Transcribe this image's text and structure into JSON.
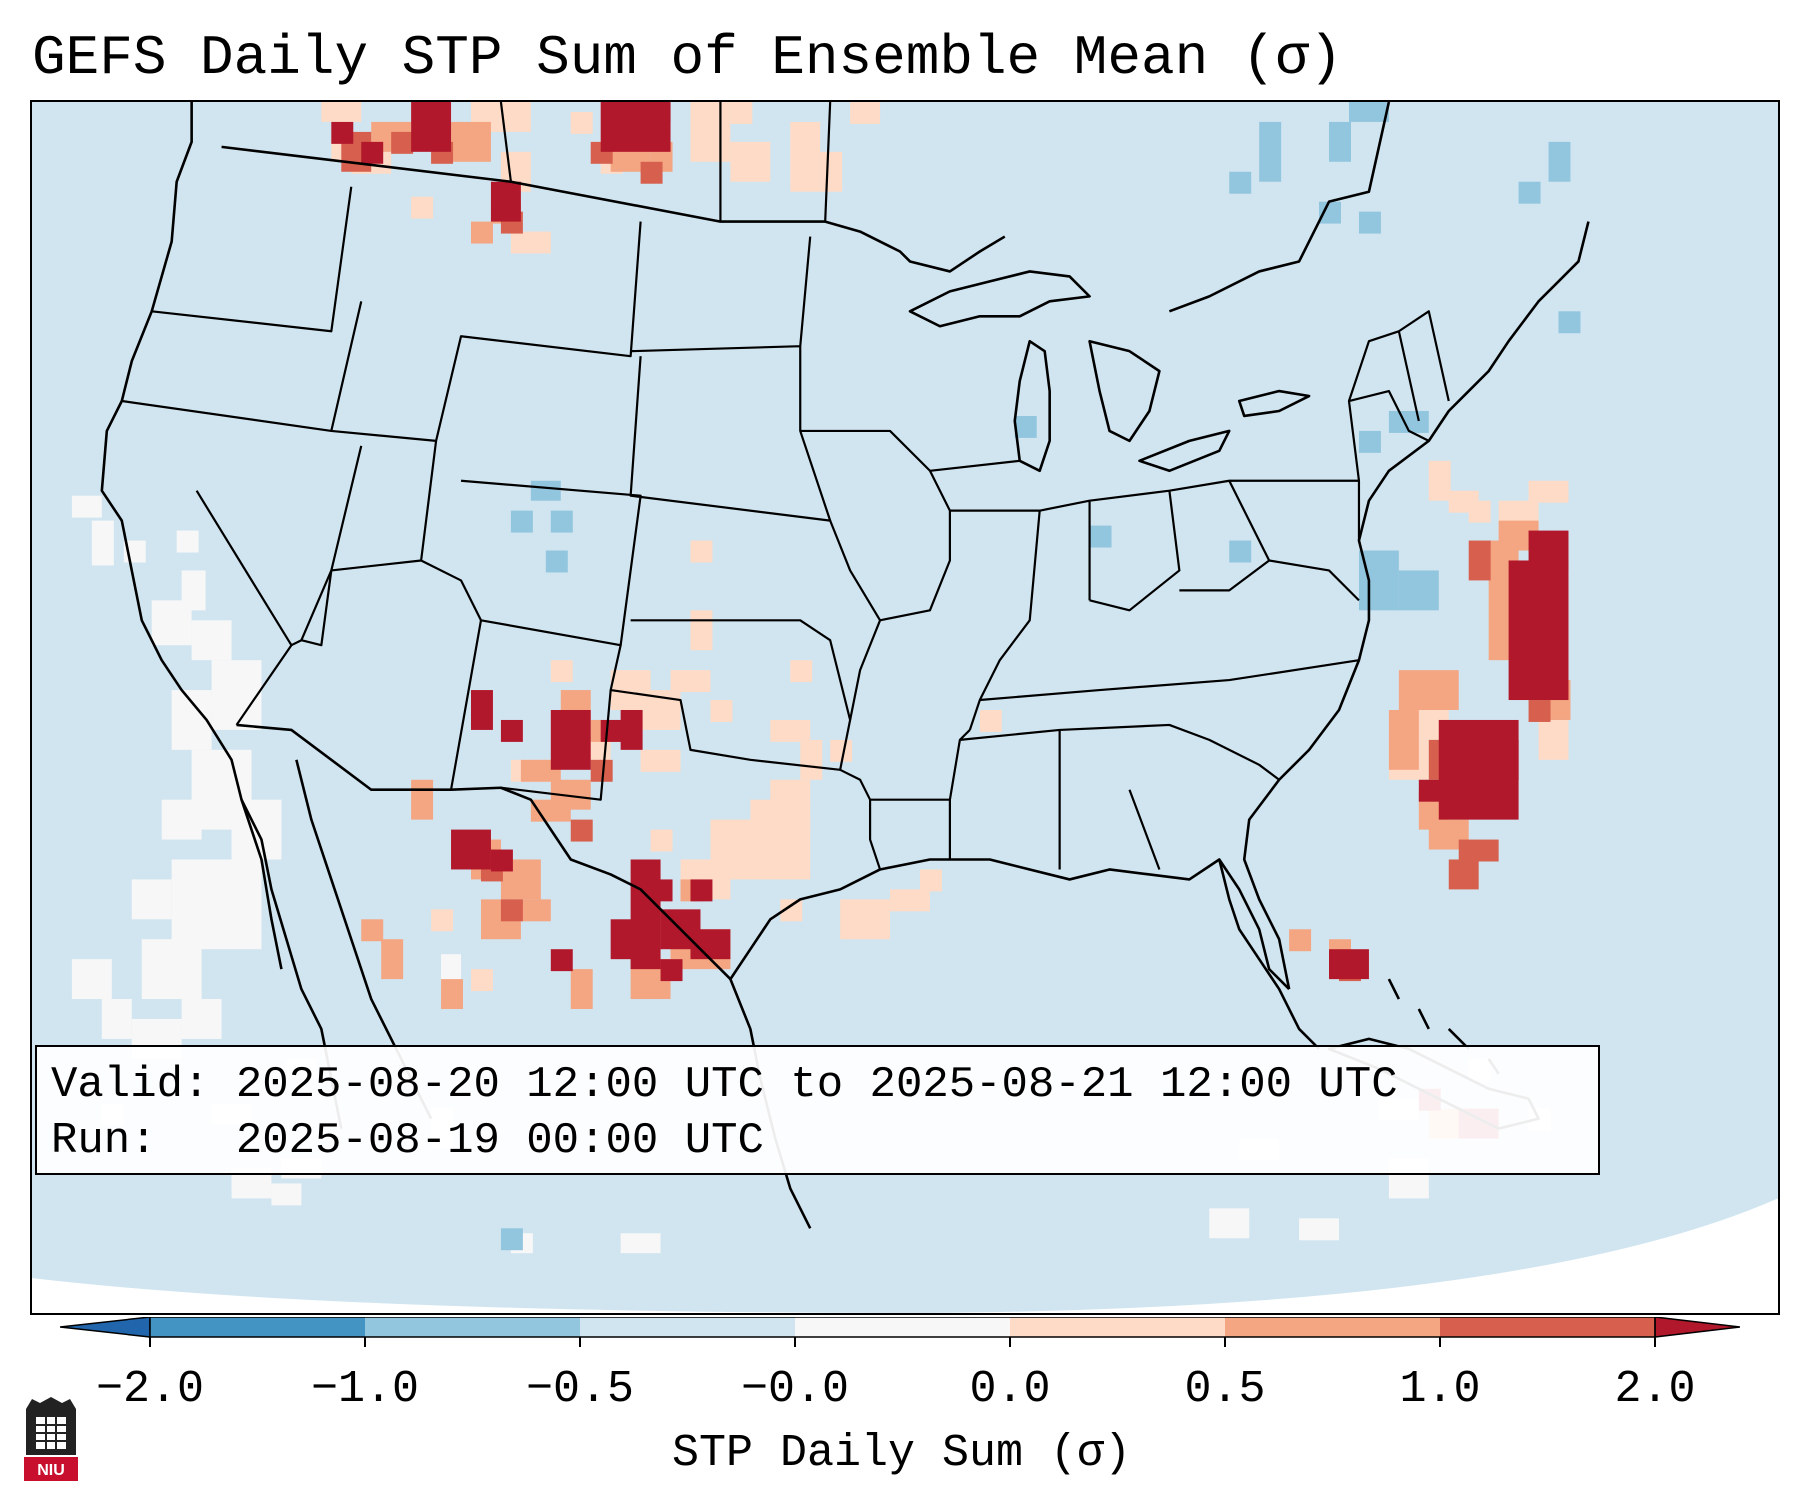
{
  "title": "GEFS Daily STP Sum of Ensemble Mean (σ)",
  "colors": {
    "background_land": "#d1e5f0",
    "ocean_outside": "#ffffff",
    "bin_neg_2_to_neg_1": "#4393c3",
    "bin_neg_1_to_neg_05": "#92c5de",
    "bin_neg_05_to_0": "#d1e5f0",
    "bin_0_to_0": "#f7f7f7",
    "bin_0_to_05": "#fddbc7",
    "bin_05_to_1": "#f4a582",
    "bin_1_to_2": "#d6604d",
    "bin_above_2": "#b2182b",
    "under": "#2166ac",
    "over": "#b2182b",
    "boundaries": "#000000"
  },
  "map": {
    "projection": "Lambert Conformal (CONUS)",
    "region": "Contiguous United States, southern Canada, northern Mexico, Gulf of Mexico, western Atlantic",
    "features": [
      "state-borders",
      "national-borders",
      "coastlines",
      "great-lakes"
    ]
  },
  "info": {
    "valid_line": "Valid: 2025-08-20 12:00 UTC to 2025-08-21 12:00 UTC",
    "run_line": "Run:   2025-08-19 00:00 UTC"
  },
  "colorbar": {
    "label": "STP Daily Sum (σ)",
    "ticks": [
      "−2.0",
      "−1.0",
      "−0.5",
      "−0.0",
      "0.0",
      "0.5",
      "1.0",
      "2.0"
    ],
    "extend": "both"
  },
  "logo": {
    "text": "NIU",
    "icon": "niu-logo-icon"
  },
  "anomaly_regions": [
    {
      "name": "southern-alberta",
      "level": 2
    },
    {
      "name": "southern-saskatchewan",
      "level": 2
    },
    {
      "name": "northern-montana",
      "level": 2
    },
    {
      "name": "southern-manitoba",
      "level": 1
    },
    {
      "name": "new-mexico",
      "level": 2
    },
    {
      "name": "west-texas",
      "level": 1
    },
    {
      "name": "southwest-texas-rio-grande",
      "level": 2
    },
    {
      "name": "central-texas",
      "level": 1
    },
    {
      "name": "chihuahua-sonora",
      "level": 2
    },
    {
      "name": "south-florida",
      "level": 2
    },
    {
      "name": "western-atlantic",
      "level": 2
    },
    {
      "name": "pacific-offshore-california",
      "level": 0
    },
    {
      "name": "chesapeake-bay",
      "level": -1
    },
    {
      "name": "colorado",
      "level": -1
    }
  ]
}
